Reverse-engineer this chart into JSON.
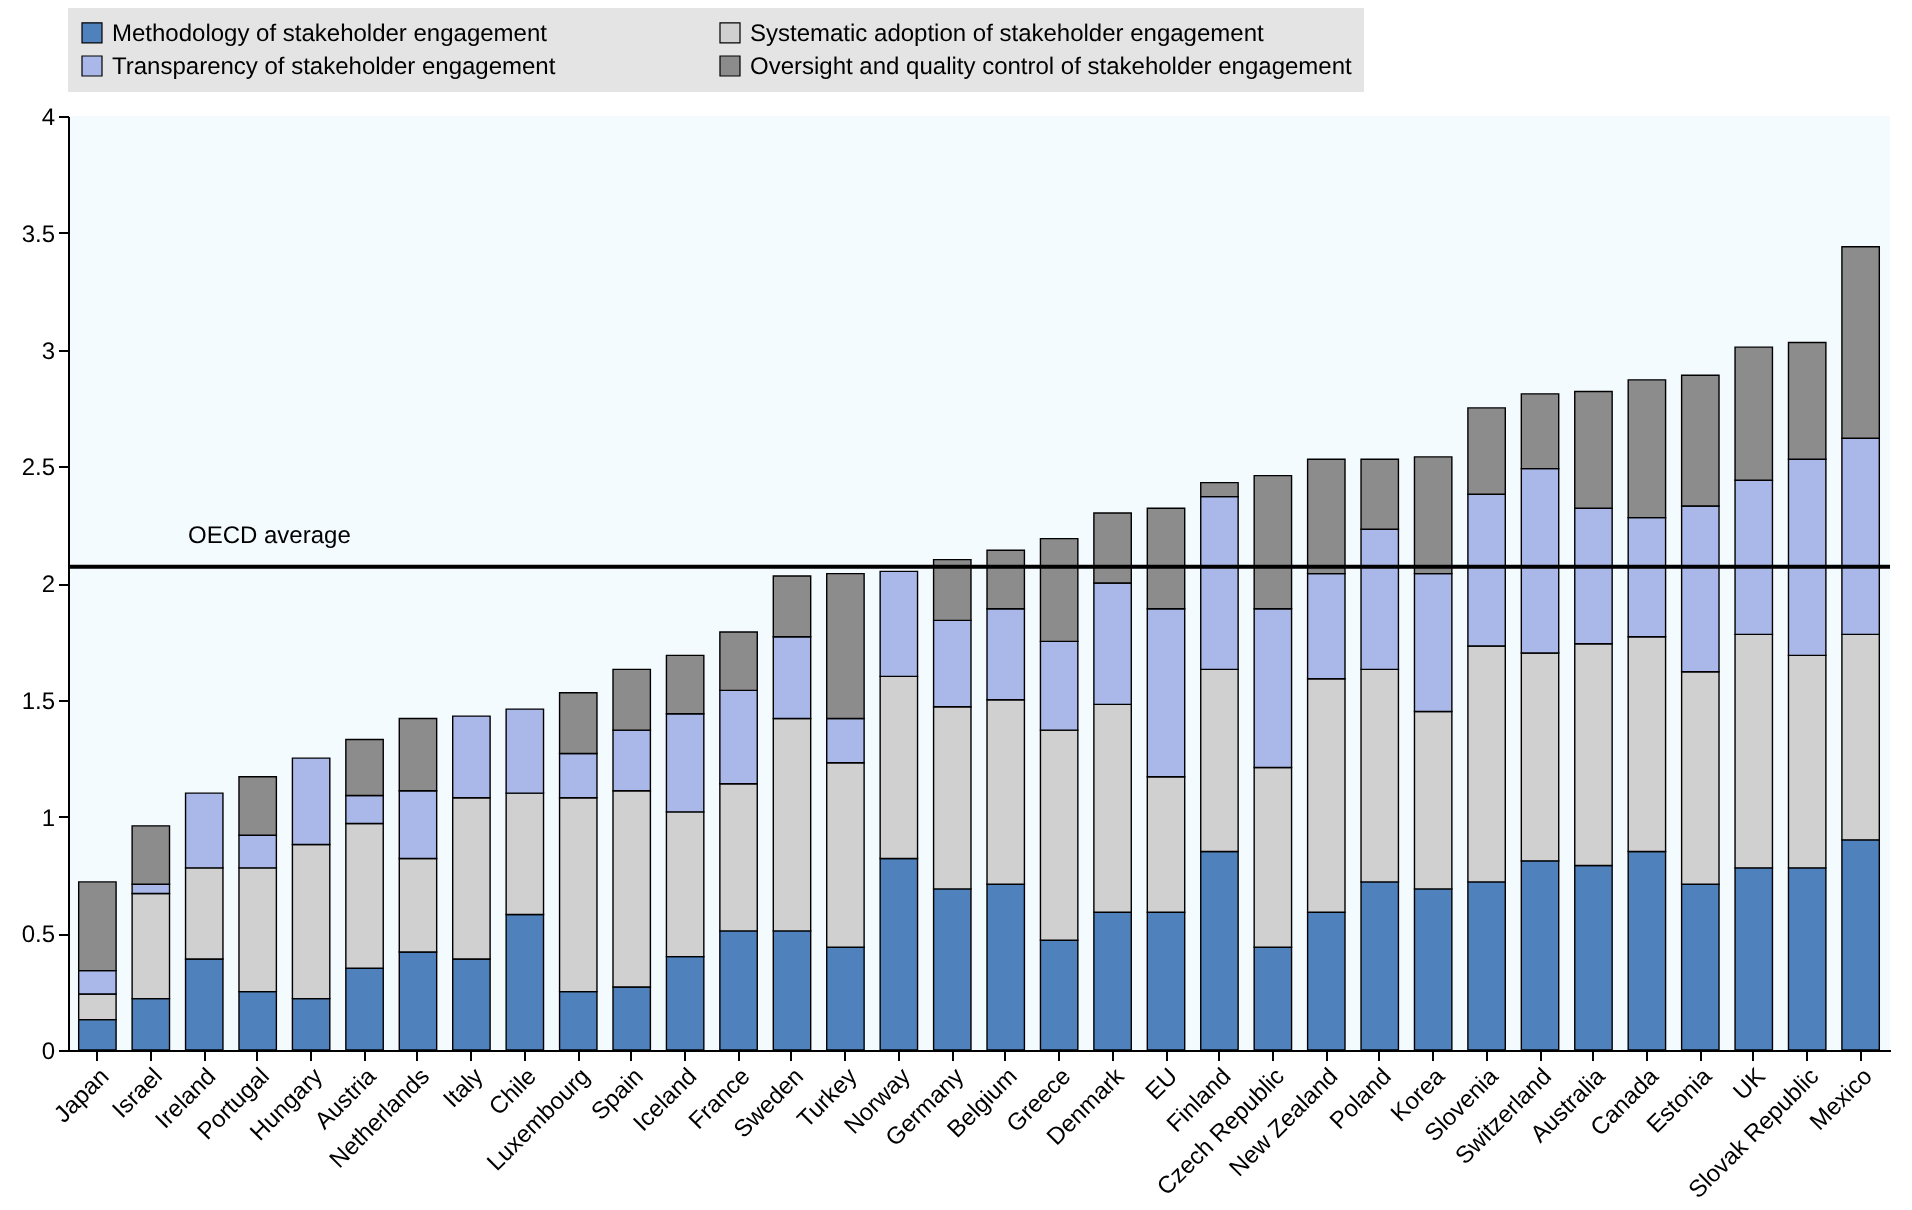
{
  "chart_data": {
    "type": "bar",
    "stacked": true,
    "categories": [
      "Japan",
      "Israel",
      "Ireland",
      "Portugal",
      "Hungary",
      "Austria",
      "Netherlands",
      "Italy",
      "Chile",
      "Luxembourg",
      "Spain",
      "Iceland",
      "France",
      "Sweden",
      "Turkey",
      "Norway",
      "Germany",
      "Belgium",
      "Greece",
      "Denmark",
      "EU",
      "Finland",
      "Czech Republic",
      "New Zealand",
      "Poland",
      "Korea",
      "Slovenia",
      "Switzerland",
      "Australia",
      "Canada",
      "Estonia",
      "UK",
      "Slovak Republic",
      "Mexico"
    ],
    "series": [
      {
        "name": "Methodology of stakeholder engagement",
        "color": "#4f81bd",
        "values": [
          0.13,
          0.22,
          0.39,
          0.25,
          0.22,
          0.35,
          0.42,
          0.39,
          0.58,
          0.25,
          0.27,
          0.4,
          0.51,
          0.51,
          0.44,
          0.82,
          0.69,
          0.71,
          0.47,
          0.59,
          0.59,
          0.85,
          0.44,
          0.59,
          0.72,
          0.69,
          0.72,
          0.81,
          0.79,
          0.85,
          0.71,
          0.78,
          0.78,
          0.9
        ]
      },
      {
        "name": "Systematic adoption of stakeholder engagement",
        "color": "#d0d0d0",
        "values": [
          0.11,
          0.45,
          0.39,
          0.53,
          0.66,
          0.62,
          0.4,
          0.69,
          0.52,
          0.83,
          0.84,
          0.62,
          0.63,
          0.91,
          0.79,
          0.78,
          0.78,
          0.79,
          0.9,
          0.89,
          0.58,
          0.78,
          0.77,
          1.0,
          0.91,
          0.76,
          1.01,
          0.89,
          0.95,
          0.92,
          0.91,
          1.0,
          0.91,
          0.88
        ]
      },
      {
        "name": "Transparency of stakeholder engagement",
        "color": "#a9b8e8",
        "values": [
          0.1,
          0.04,
          0.32,
          0.14,
          0.37,
          0.12,
          0.29,
          0.35,
          0.36,
          0.19,
          0.26,
          0.42,
          0.4,
          0.35,
          0.19,
          0.45,
          0.37,
          0.39,
          0.38,
          0.52,
          0.72,
          0.74,
          0.68,
          0.45,
          0.6,
          0.59,
          0.65,
          0.79,
          0.58,
          0.51,
          0.71,
          0.66,
          0.84,
          0.84
        ]
      },
      {
        "name": "Oversight and quality control of stakeholder engagement",
        "color": "#8c8c8c",
        "values": [
          0.38,
          0.25,
          0,
          0.25,
          0,
          0.24,
          0.31,
          0,
          0,
          0.26,
          0.26,
          0.25,
          0.25,
          0.26,
          0.62,
          0,
          0.26,
          0.25,
          0.44,
          0.3,
          0.43,
          0.06,
          0.57,
          0.49,
          0.3,
          0.5,
          0.37,
          0.32,
          0.5,
          0.59,
          0.56,
          0.57,
          0.5,
          0.82
        ]
      }
    ],
    "ylim": [
      0,
      4
    ],
    "yticks": [
      0,
      0.5,
      1,
      1.5,
      2,
      2.5,
      3,
      3.5,
      4
    ],
    "grid": false,
    "legend": "top",
    "ref_lines": [
      {
        "axis": "y",
        "value": 2.07,
        "label": "OECD average"
      }
    ]
  }
}
